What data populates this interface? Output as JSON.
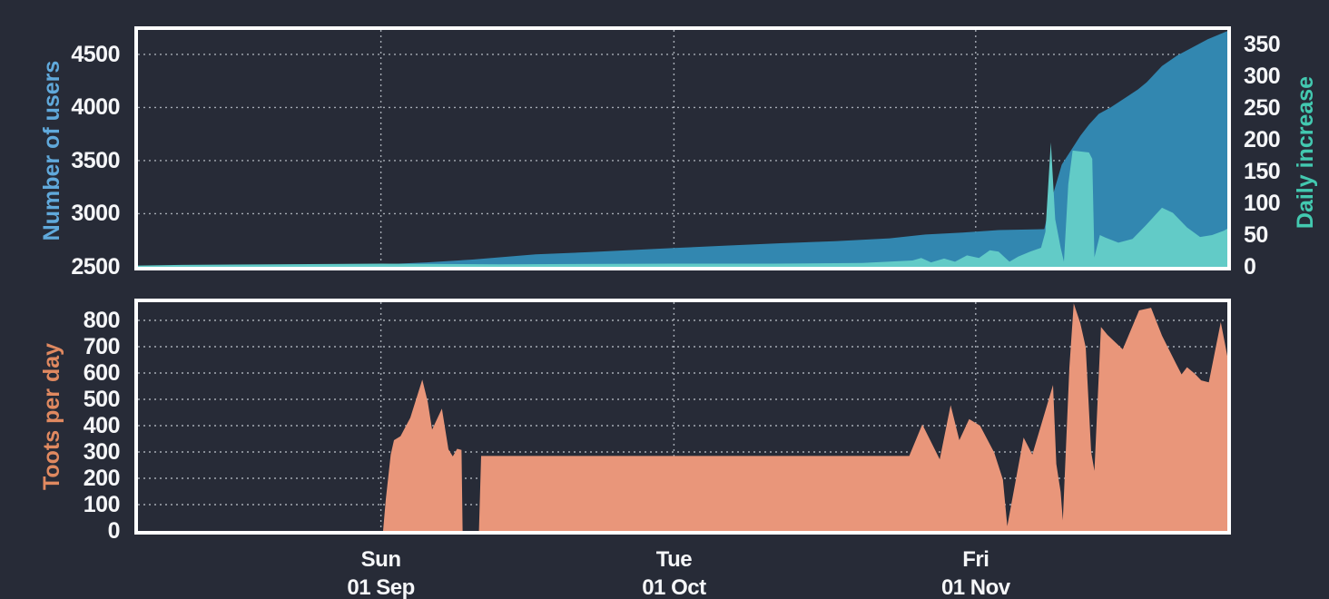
{
  "colors": {
    "background": "#272b37",
    "plot_border": "#ffffff",
    "gridline": "#c6cbd4",
    "tick_text": "#f5f6f8",
    "users_area": "#3287b0",
    "increase_area": "#62cbc7",
    "toots_area": "#e9967a",
    "users_label": "#60a9db",
    "increase_label": "#43c9b0",
    "toots_label": "#e08960"
  },
  "x_ticks": [
    {
      "f": 0.223,
      "line1": "Sun",
      "line2": "01 Sep"
    },
    {
      "f": 0.492,
      "line1": "Tue",
      "line2": "01 Oct"
    },
    {
      "f": 0.769,
      "line1": "Fri",
      "line2": "01 Nov"
    }
  ],
  "chart_data": [
    {
      "id": "users-and-daily-increase",
      "type": "area",
      "title": "",
      "legend": "none",
      "grid": "dashed",
      "x_range_note": "early Aug to late Nov, daily samples",
      "y_left": {
        "label": "Number of users",
        "ticks": [
          "2500",
          "3000",
          "3500",
          "4000",
          "4500"
        ],
        "tick_values": [
          2500,
          3000,
          3500,
          4000,
          4500
        ],
        "min": 2500,
        "max": 4730
      },
      "y_right": {
        "label": "Daily increase",
        "ticks": [
          "0",
          "50",
          "100",
          "150",
          "200",
          "250",
          "300",
          "350"
        ],
        "tick_values": [
          0,
          50,
          100,
          150,
          200,
          250,
          300,
          350
        ],
        "min": 0,
        "max": 373
      },
      "series": [
        {
          "name": "Number of users",
          "axis": "left",
          "color": "#3287b0",
          "points": [
            [
              0,
              2500
            ],
            [
              0.09,
              2506
            ],
            [
              0.173,
              2514
            ],
            [
              0.223,
              2522
            ],
            [
              0.265,
              2542
            ],
            [
              0.307,
              2568
            ],
            [
              0.365,
              2618
            ],
            [
              0.415,
              2638
            ],
            [
              0.492,
              2677
            ],
            [
              0.54,
              2700
            ],
            [
              0.59,
              2722
            ],
            [
              0.64,
              2742
            ],
            [
              0.69,
              2768
            ],
            [
              0.723,
              2804
            ],
            [
              0.757,
              2822
            ],
            [
              0.79,
              2846
            ],
            [
              0.832,
              2855
            ],
            [
              0.836,
              3040
            ],
            [
              0.84,
              3183
            ],
            [
              0.848,
              3462
            ],
            [
              0.857,
              3605
            ],
            [
              0.865,
              3732
            ],
            [
              0.873,
              3840
            ],
            [
              0.882,
              3940
            ],
            [
              0.893,
              4002
            ],
            [
              0.907,
              4095
            ],
            [
              0.918,
              4170
            ],
            [
              0.926,
              4238
            ],
            [
              0.94,
              4390
            ],
            [
              0.954,
              4490
            ],
            [
              0.965,
              4550
            ],
            [
              0.982,
              4643
            ],
            [
              0.996,
              4702
            ],
            [
              1,
              4720
            ]
          ]
        },
        {
          "name": "Daily increase",
          "axis": "right",
          "color": "#62cbc7",
          "points": [
            [
              0,
              2
            ],
            [
              0.04,
              3
            ],
            [
              0.123,
              4
            ],
            [
              0.223,
              5
            ],
            [
              0.332,
              4
            ],
            [
              0.492,
              5
            ],
            [
              0.582,
              5
            ],
            [
              0.665,
              6
            ],
            [
              0.711,
              10
            ],
            [
              0.719,
              14
            ],
            [
              0.728,
              7
            ],
            [
              0.74,
              13
            ],
            [
              0.75,
              8
            ],
            [
              0.761,
              18
            ],
            [
              0.772,
              14
            ],
            [
              0.782,
              26
            ],
            [
              0.79,
              24
            ],
            [
              0.8,
              8
            ],
            [
              0.808,
              16
            ],
            [
              0.819,
              24
            ],
            [
              0.829,
              30
            ],
            [
              0.833,
              55
            ],
            [
              0.838,
              196
            ],
            [
              0.842,
              75
            ],
            [
              0.847,
              30
            ],
            [
              0.85,
              8
            ],
            [
              0.854,
              130
            ],
            [
              0.858,
              183
            ],
            [
              0.873,
              180
            ],
            [
              0.876,
              170
            ],
            [
              0.878,
              15
            ],
            [
              0.883,
              50
            ],
            [
              0.888,
              46
            ],
            [
              0.9,
              38
            ],
            [
              0.913,
              44
            ],
            [
              0.925,
              65
            ],
            [
              0.94,
              93
            ],
            [
              0.95,
              85
            ],
            [
              0.963,
              62
            ],
            [
              0.975,
              47
            ],
            [
              0.986,
              50
            ],
            [
              0.997,
              57
            ],
            [
              1,
              60
            ]
          ]
        }
      ]
    },
    {
      "id": "toots-per-day",
      "type": "area",
      "title": "",
      "legend": "none",
      "grid": "dashed",
      "y_left": {
        "label": "Toots per day",
        "ticks": [
          "0",
          "100",
          "200",
          "300",
          "400",
          "500",
          "600",
          "700",
          "800"
        ],
        "tick_values": [
          0,
          100,
          200,
          300,
          400,
          500,
          600,
          700,
          800
        ],
        "min": 0,
        "max": 869
      },
      "series": [
        {
          "name": "Toots per day",
          "axis": "left",
          "color": "#e9967a",
          "points": [
            [
              0,
              0
            ],
            [
              0.225,
              0
            ],
            [
              0.2275,
              120
            ],
            [
              0.232,
              290
            ],
            [
              0.235,
              345
            ],
            [
              0.241,
              360
            ],
            [
              0.25,
              430
            ],
            [
              0.261,
              575
            ],
            [
              0.266,
              490
            ],
            [
              0.27,
              385
            ],
            [
              0.279,
              465
            ],
            [
              0.285,
              310
            ],
            [
              0.289,
              283
            ],
            [
              0.293,
              312
            ],
            [
              0.297,
              308
            ],
            [
              0.298,
              0
            ],
            [
              0.313,
              0
            ],
            [
              0.315,
              285
            ],
            [
              0.708,
              285
            ],
            [
              0.72,
              405
            ],
            [
              0.736,
              272
            ],
            [
              0.746,
              478
            ],
            [
              0.754,
              345
            ],
            [
              0.763,
              425
            ],
            [
              0.773,
              400
            ],
            [
              0.786,
              298
            ],
            [
              0.794,
              195
            ],
            [
              0.798,
              18
            ],
            [
              0.813,
              355
            ],
            [
              0.821,
              290
            ],
            [
              0.84,
              555
            ],
            [
              0.843,
              255
            ],
            [
              0.847,
              148
            ],
            [
              0.849,
              40
            ],
            [
              0.855,
              620
            ],
            [
              0.859,
              865
            ],
            [
              0.865,
              790
            ],
            [
              0.87,
              698
            ],
            [
              0.875,
              300
            ],
            [
              0.878,
              228
            ],
            [
              0.884,
              775
            ],
            [
              0.89,
              745
            ],
            [
              0.904,
              690
            ],
            [
              0.919,
              838
            ],
            [
              0.93,
              848
            ],
            [
              0.94,
              742
            ],
            [
              0.953,
              635
            ],
            [
              0.958,
              595
            ],
            [
              0.963,
              622
            ],
            [
              0.97,
              598
            ],
            [
              0.976,
              572
            ],
            [
              0.983,
              565
            ],
            [
              0.994,
              793
            ],
            [
              1,
              665
            ]
          ]
        }
      ]
    }
  ]
}
